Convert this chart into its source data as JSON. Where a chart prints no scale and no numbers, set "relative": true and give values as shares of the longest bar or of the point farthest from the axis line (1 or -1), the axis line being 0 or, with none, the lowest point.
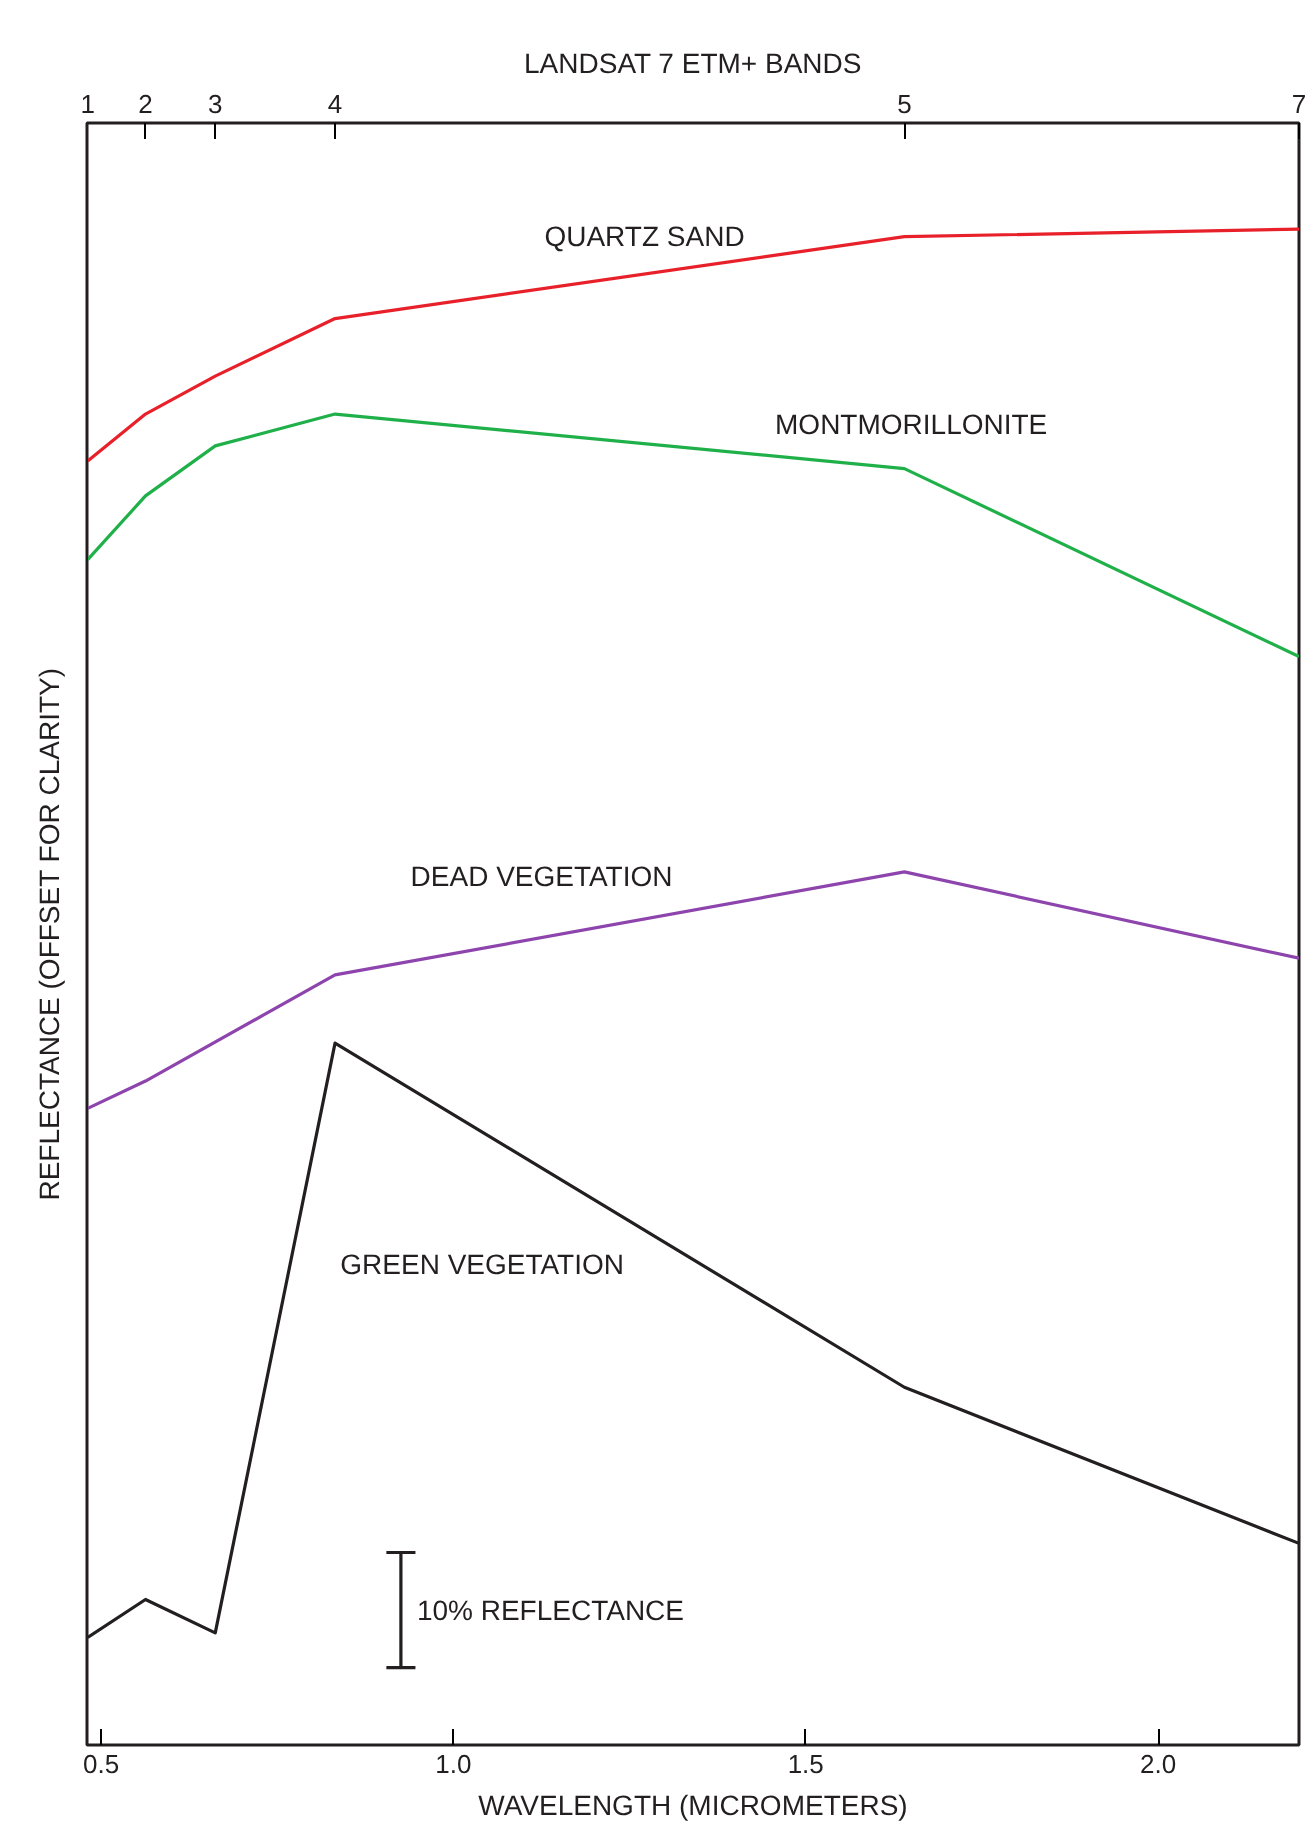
{
  "chart_data": {
    "type": "line",
    "relative": true,
    "x2label": "LANDSAT 7 ETM+ BANDS",
    "xlabel": "WAVELENGTH (MICROMETERS)",
    "ylabel": "REFLECTANCE (OFFSET FOR CLARITY)",
    "xlim": [
      0.48,
      2.2
    ],
    "xticks": [
      0.5,
      {
        "value": 1.0,
        "label": "1.0"
      },
      1.5,
      {
        "value": 2.0,
        "label": "2.0"
      }
    ],
    "x": [
      0.481,
      0.563,
      0.662,
      0.832,
      1.64,
      2.2
    ],
    "series": [
      {
        "name": "QUARTZ SAND",
        "color": "#e8202a",
        "values": [
          0.847,
          0.878,
          0.903,
          0.941,
          0.995,
          1.0
        ]
      },
      {
        "name": "MONTMORILLONITE",
        "color": "#20b04a",
        "values": [
          0.782,
          0.824,
          0.857,
          0.878,
          0.842,
          0.718
        ]
      },
      {
        "name": "DEAD VEGETATION",
        "color": "#8e44ad",
        "x": [
          0.481,
          0.563,
          0.832,
          1.64,
          2.2
        ],
        "values": [
          0.42,
          0.438,
          0.508,
          0.576,
          0.519
        ]
      },
      {
        "name": "GREEN VEGETATION",
        "color": "#231f20",
        "values": [
          0.071,
          0.096,
          0.074,
          0.463,
          0.236,
          0.133
        ]
      }
    ],
    "annotations": [
      "10% REFLECTANCE",
      "1",
      "2",
      "3",
      "4",
      "5",
      "7"
    ],
    "grid": false,
    "legend": false,
    "marker": "none",
    "line_style": "solid"
  }
}
